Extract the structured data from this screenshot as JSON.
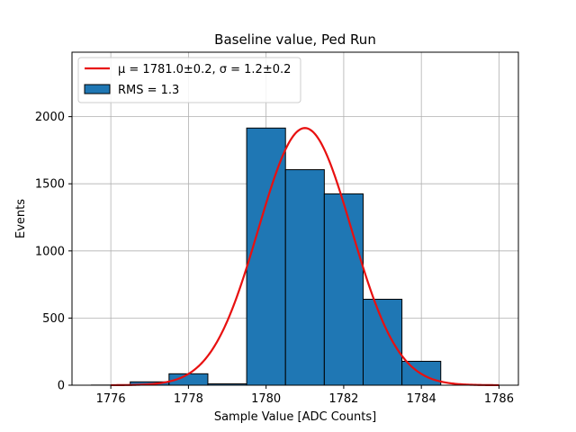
{
  "chart_data": {
    "type": "bar",
    "title": "Baseline value, Ped Run",
    "xlabel": "Sample Value [ADC Counts]",
    "ylabel": "Events",
    "xlim": [
      1775,
      1786.5
    ],
    "ylim": [
      0,
      2480
    ],
    "xticks": [
      1776,
      1778,
      1780,
      1782,
      1784,
      1786
    ],
    "yticks": [
      0,
      500,
      1000,
      1500,
      2000
    ],
    "grid": true,
    "legend_position": "top-left",
    "histogram": {
      "label": "RMS = 1.3",
      "color": "#1f77b4",
      "edge_color": "#000000",
      "bins": [
        {
          "x0": 1775.5,
          "x1": 1776.5,
          "value": 1
        },
        {
          "x0": 1776.5,
          "x1": 1777.5,
          "value": 25
        },
        {
          "x0": 1777.5,
          "x1": 1778.5,
          "value": 85
        },
        {
          "x0": 1778.5,
          "x1": 1779.5,
          "value": 10
        },
        {
          "x0": 1779.5,
          "x1": 1780.5,
          "value": 1915
        },
        {
          "x0": 1780.5,
          "x1": 1781.5,
          "value": 1605
        },
        {
          "x0": 1781.5,
          "x1": 1782.5,
          "value": 1425
        },
        {
          "x0": 1782.5,
          "x1": 1783.5,
          "value": 640
        },
        {
          "x0": 1783.5,
          "x1": 1784.5,
          "value": 178
        }
      ]
    },
    "fit": {
      "type": "gaussian",
      "label_mu": "μ = 1781.0±0.2, ",
      "label_sigma": "σ = 1.2±0.2",
      "color": "#e81010",
      "mu": 1781.0,
      "sigma": 1.2,
      "amplitude": 1915,
      "x_range": [
        1776,
        1786
      ]
    }
  }
}
